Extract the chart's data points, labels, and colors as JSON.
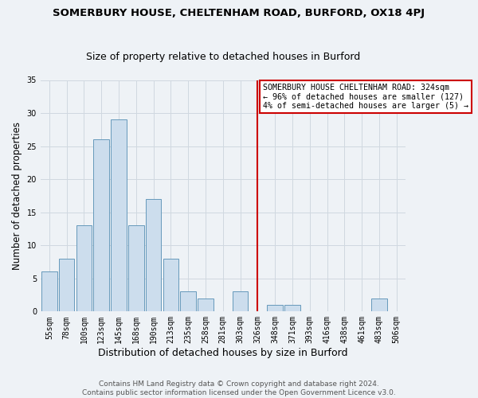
{
  "title": "SOMERBURY HOUSE, CHELTENHAM ROAD, BURFORD, OX18 4PJ",
  "subtitle": "Size of property relative to detached houses in Burford",
  "xlabel": "Distribution of detached houses by size in Burford",
  "ylabel": "Number of detached properties",
  "bar_labels": [
    "55sqm",
    "78sqm",
    "100sqm",
    "123sqm",
    "145sqm",
    "168sqm",
    "190sqm",
    "213sqm",
    "235sqm",
    "258sqm",
    "281sqm",
    "303sqm",
    "326sqm",
    "348sqm",
    "371sqm",
    "393sqm",
    "416sqm",
    "438sqm",
    "461sqm",
    "483sqm",
    "506sqm"
  ],
  "bar_values": [
    6,
    8,
    13,
    26,
    29,
    13,
    17,
    8,
    3,
    2,
    0,
    3,
    0,
    1,
    1,
    0,
    0,
    0,
    0,
    2,
    0
  ],
  "bar_color": "#ccdded",
  "bar_edge_color": "#6699bb",
  "grid_color": "#d0d8e0",
  "vline_index": 12,
  "vline_color": "#cc0000",
  "annotation_title": "SOMERBURY HOUSE CHELTENHAM ROAD: 324sqm",
  "annotation_line1": "← 96% of detached houses are smaller (127)",
  "annotation_line2": "4% of semi-detached houses are larger (5) →",
  "annotation_box_color": "#ffffff",
  "annotation_border_color": "#cc0000",
  "ylim": [
    0,
    35
  ],
  "yticks": [
    0,
    5,
    10,
    15,
    20,
    25,
    30,
    35
  ],
  "footer1": "Contains HM Land Registry data © Crown copyright and database right 2024.",
  "footer2": "Contains public sector information licensed under the Open Government Licence v3.0.",
  "bg_color": "#eef2f6",
  "plot_bg_color": "#eef2f6",
  "title_fontsize": 9.5,
  "subtitle_fontsize": 9,
  "ylabel_fontsize": 8.5,
  "xlabel_fontsize": 9,
  "tick_fontsize": 7,
  "footer_fontsize": 6.5
}
